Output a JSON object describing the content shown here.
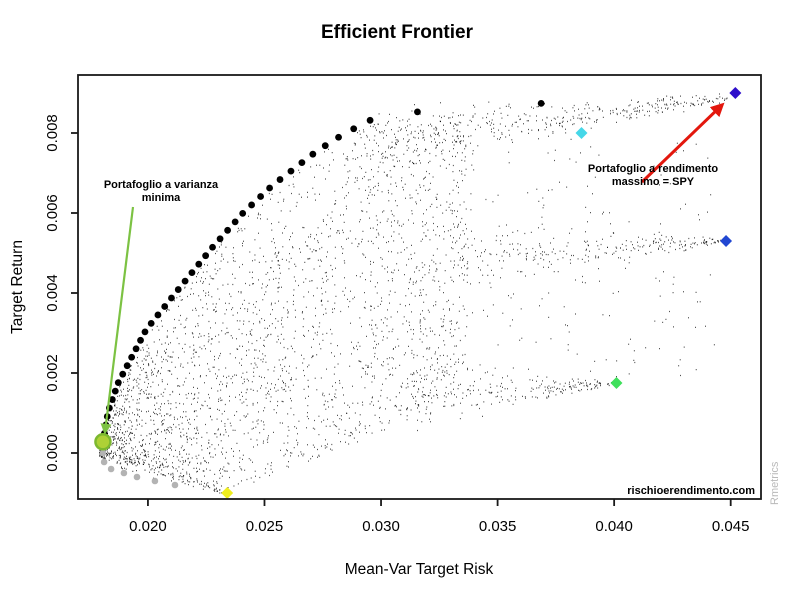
{
  "title": "Efficient Frontier",
  "xlabel": "Mean-Var Target Risk",
  "ylabel": "Target Return",
  "watermark": "rischioerendimento.com",
  "side_brand": "Rmetrics",
  "annotations": {
    "min_variance": {
      "line1": "Portafoglio a varianza",
      "line2": "minima",
      "line_color": "#7cc243"
    },
    "max_return": {
      "line1": "Portafoglio a rendimento",
      "line2": "massimo = SPY",
      "arrow_color": "#e3170d"
    }
  },
  "chart_data": {
    "type": "scatter",
    "title": "Efficient Frontier",
    "xlabel": "Mean-Var Target Risk",
    "ylabel": "Target Return",
    "xlim": [
      0.017,
      0.0463
    ],
    "ylim": [
      -0.00115,
      0.00945
    ],
    "grid": false,
    "xticks": [
      {
        "v": 0.02,
        "label": "0.020"
      },
      {
        "v": 0.025,
        "label": "0.025"
      },
      {
        "v": 0.03,
        "label": "0.030"
      },
      {
        "v": 0.035,
        "label": "0.035"
      },
      {
        "v": 0.04,
        "label": "0.040"
      },
      {
        "v": 0.045,
        "label": "0.045"
      }
    ],
    "yticks": [
      {
        "v": 0.0,
        "label": "0.000"
      },
      {
        "v": 0.002,
        "label": "0.002"
      },
      {
        "v": 0.004,
        "label": "0.004"
      },
      {
        "v": 0.006,
        "label": "0.006"
      },
      {
        "v": 0.008,
        "label": "0.008"
      }
    ],
    "frontier": {
      "description": "Efficient frontier portfolios, equally spaced target returns (black dots)",
      "color": "#000000",
      "dot_radius": 3.4,
      "mu_first": 0.00049,
      "mu_last": 0.00874,
      "count": 40,
      "anchors_risk_return": [
        [
          0.01807,
          0.00028
        ],
        [
          0.01829,
          0.00103
        ],
        [
          0.01872,
          0.00175
        ],
        [
          0.01992,
          0.00308
        ],
        [
          0.02125,
          0.00405
        ],
        [
          0.02275,
          0.00513
        ],
        [
          0.02408,
          0.006
        ],
        [
          0.02532,
          0.00668
        ],
        [
          0.02725,
          0.00755
        ],
        [
          0.02841,
          0.00798
        ],
        [
          0.02974,
          0.00838
        ],
        [
          0.03158,
          0.00853
        ],
        [
          0.03712,
          0.00875
        ],
        [
          0.04518,
          0.009
        ]
      ]
    },
    "min_variance_point": {
      "x": 0.01807,
      "y": 0.00028,
      "fill": "#aed136",
      "stroke": "#7cb82f",
      "radius": 7.5
    },
    "inefficient_branch": {
      "color": "#b3b3b3",
      "dot_radius": 3.3,
      "points": [
        [
          0.01807,
          0.0
        ],
        [
          0.01812,
          -0.000225
        ],
        [
          0.01842,
          -0.0004
        ],
        [
          0.01897,
          -0.0005
        ],
        [
          0.01953,
          -0.0006
        ],
        [
          0.0203,
          -0.0007
        ],
        [
          0.02116,
          -0.0008
        ]
      ]
    },
    "single_asset_points": [
      {
        "label": "SPY",
        "x": 0.0452,
        "y": 0.009,
        "color": "#2e0ecb"
      },
      {
        "label": "",
        "x": 0.0448,
        "y": 0.0053,
        "color": "#2147d2"
      },
      {
        "label": "",
        "x": 0.0386,
        "y": 0.008,
        "color": "#46d7e8"
      },
      {
        "label": "",
        "x": 0.0401,
        "y": 0.00175,
        "color": "#3fe05b"
      },
      {
        "label": "",
        "x": 0.0234,
        "y": -0.001,
        "color": "#f0ee1f"
      }
    ],
    "cloud": {
      "description": "Monte Carlo random portfolios (tiny black specks)",
      "count": 3720,
      "seed": 987654321,
      "color": "#0a0a0a",
      "lower_envelope": [
        [
          0.0179,
          -0.0001
        ],
        [
          0.0205,
          -0.0006
        ],
        [
          0.0235,
          -0.00095
        ],
        [
          0.027,
          -0.0002
        ],
        [
          0.03,
          0.0005
        ],
        [
          0.0337,
          0.0014
        ]
      ]
    },
    "legend": null
  }
}
